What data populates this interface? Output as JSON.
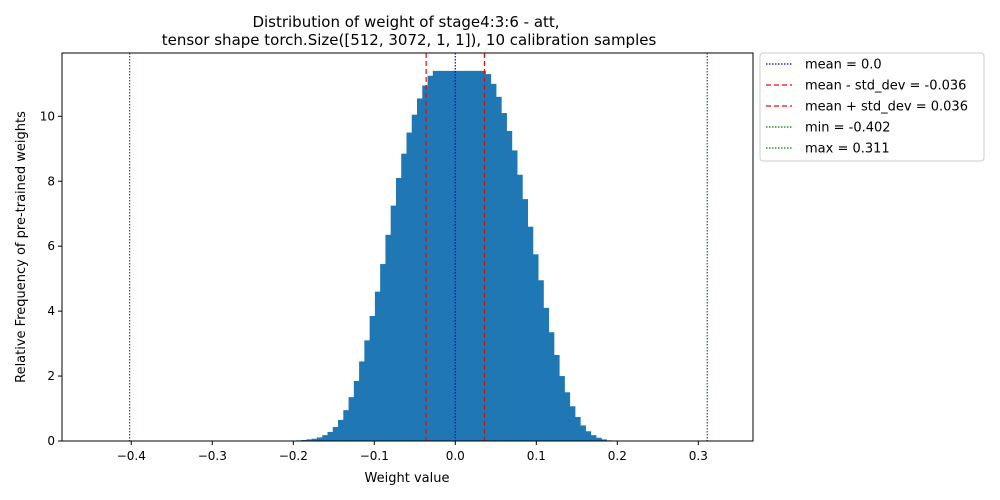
{
  "chart_data": {
    "type": "bar",
    "title": "Distribution of weight of stage4:3:6 - att,",
    "subtitle": "tensor shape torch.Size([512, 3072, 1, 1]), 10 calibration samples",
    "xlabel": "Weight value",
    "ylabel": "Relative Frequency of pre-trained weights",
    "xlim": [
      -0.4855,
      0.3675
    ],
    "ylim": [
      0,
      11.95
    ],
    "xticks": [
      -0.4,
      -0.3,
      -0.2,
      -0.1,
      0.0,
      0.1,
      0.2,
      0.3
    ],
    "xtick_labels": [
      "−0.4",
      "−0.3",
      "−0.2",
      "−0.1",
      "0.0",
      "0.1",
      "0.2",
      "0.3"
    ],
    "yticks": [
      0,
      2,
      4,
      6,
      8,
      10
    ],
    "ytick_labels": [
      "0",
      "2",
      "4",
      "6",
      "8",
      "10"
    ],
    "grid": false,
    "legend_position": "outside-right",
    "bar_color": "#1f77b4",
    "histogram": {
      "bin_width": 0.0065,
      "bin_centers": [
        -0.2,
        -0.1935,
        -0.187,
        -0.1805,
        -0.174,
        -0.1675,
        -0.161,
        -0.1545,
        -0.148,
        -0.1415,
        -0.135,
        -0.1285,
        -0.122,
        -0.1155,
        -0.109,
        -0.1025,
        -0.096,
        -0.0895,
        -0.083,
        -0.0765,
        -0.07,
        -0.0635,
        -0.057,
        -0.0505,
        -0.044,
        -0.0375,
        -0.031,
        -0.0245,
        -0.018,
        -0.0115,
        -0.005,
        0.0015,
        0.008,
        0.0145,
        0.021,
        0.0275,
        0.034,
        0.0405,
        0.047,
        0.0535,
        0.06,
        0.0665,
        0.073,
        0.0795,
        0.086,
        0.0925,
        0.099,
        0.1055,
        0.112,
        0.1185,
        0.125,
        0.1315,
        0.138,
        0.1445,
        0.151,
        0.1575,
        0.164,
        0.1705,
        0.177,
        0.1835,
        0.19
      ],
      "values": [
        0.01,
        0.02,
        0.03,
        0.05,
        0.07,
        0.11,
        0.18,
        0.28,
        0.43,
        0.65,
        0.95,
        1.35,
        1.85,
        2.45,
        3.1,
        3.85,
        4.6,
        5.45,
        6.35,
        7.25,
        8.1,
        8.85,
        9.5,
        10.05,
        10.55,
        10.95,
        11.25,
        11.4,
        11.4,
        11.4,
        11.4,
        11.4,
        11.4,
        11.4,
        11.4,
        11.4,
        11.4,
        11.3,
        11.0,
        10.6,
        10.1,
        9.55,
        8.95,
        8.2,
        7.45,
        6.6,
        5.75,
        4.95,
        4.1,
        3.35,
        2.65,
        2.0,
        1.5,
        1.07,
        0.74,
        0.48,
        0.3,
        0.18,
        0.1,
        0.05,
        0.02
      ]
    },
    "reference_lines": [
      {
        "label": "mean = 0.0",
        "x": 0.0,
        "color": "#0000ff",
        "style": "dotted"
      },
      {
        "label": "mean - std_dev = -0.036",
        "x": -0.036,
        "color": "#ff0000",
        "style": "dashed"
      },
      {
        "label": "mean + std_dev = 0.036",
        "x": 0.036,
        "color": "#ff0000",
        "style": "dashed"
      },
      {
        "label": "min = -0.402",
        "x": -0.402,
        "color": "#008000",
        "style": "dotted"
      },
      {
        "label": "max = 0.311",
        "x": 0.311,
        "color": "#008000",
        "style": "dotted"
      }
    ]
  }
}
